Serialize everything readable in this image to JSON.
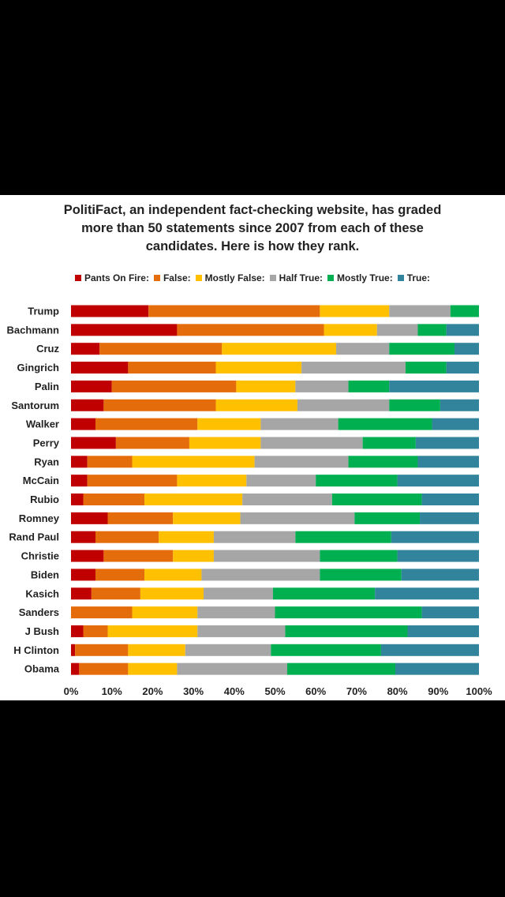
{
  "chart_data": {
    "type": "bar",
    "orientation": "horizontal",
    "stacked": true,
    "title_lines": [
      "PolitiFact,  an independent fact-checking website, has graded",
      "more than 50 statements since 2007 from each of these",
      "candidates. Here is how they rank."
    ],
    "categories": [
      "Trump",
      "Bachmann",
      "Cruz",
      "Gingrich",
      "Palin",
      "Santorum",
      "Walker",
      "Perry",
      "Ryan",
      "McCain",
      "Rubio",
      "Romney",
      "Rand Paul",
      "Christie",
      "Biden",
      "Kasich",
      "Sanders",
      "J Bush",
      "H Clinton",
      "Obama"
    ],
    "series": [
      {
        "name": "Pants On Fire:",
        "color": "#C00000",
        "values": [
          19,
          26,
          7,
          14,
          10,
          8,
          6,
          11,
          4,
          4,
          3,
          9,
          6,
          8,
          6,
          5,
          0,
          3,
          1,
          2
        ]
      },
      {
        "name": "False:",
        "color": "#E46C0A",
        "values": [
          42,
          36,
          30,
          21.5,
          30.5,
          27.5,
          25,
          18,
          11,
          22,
          15,
          16,
          15.5,
          17,
          12,
          12,
          15,
          6,
          13,
          12
        ]
      },
      {
        "name": "Mostly False:",
        "color": "#FFC000",
        "values": [
          17,
          13,
          28,
          21,
          14.5,
          20,
          15.5,
          17.5,
          30,
          17,
          24,
          16.5,
          13.5,
          10,
          14,
          15.5,
          16,
          22,
          14,
          12
        ]
      },
      {
        "name": "Half True:",
        "color": "#A6A6A6",
        "values": [
          15,
          10,
          13,
          25.5,
          13,
          22.5,
          19,
          25,
          23,
          17,
          22,
          28,
          20,
          26,
          29,
          17,
          19,
          21.5,
          21,
          27
        ]
      },
      {
        "name": "Mostly True:",
        "color": "#00B050",
        "values": [
          7,
          7,
          16,
          10,
          10,
          12.5,
          23,
          13,
          17,
          20,
          22,
          16,
          23.5,
          19,
          20,
          25,
          36,
          30,
          27,
          26.5
        ]
      },
      {
        "name": "True:",
        "color": "#31849B",
        "values": [
          0,
          8,
          6,
          8,
          22,
          9.5,
          11.5,
          15.5,
          15,
          20,
          14,
          14.5,
          21.5,
          20,
          19,
          25.5,
          14,
          17.5,
          24,
          20.5
        ]
      }
    ],
    "x_ticks": [
      "0%",
      "10%",
      "20%",
      "30%",
      "40%",
      "50%",
      "60%",
      "70%",
      "80%",
      "90%",
      "100%"
    ],
    "xlim": [
      0,
      100
    ],
    "legend_position": "top",
    "grid": false
  }
}
